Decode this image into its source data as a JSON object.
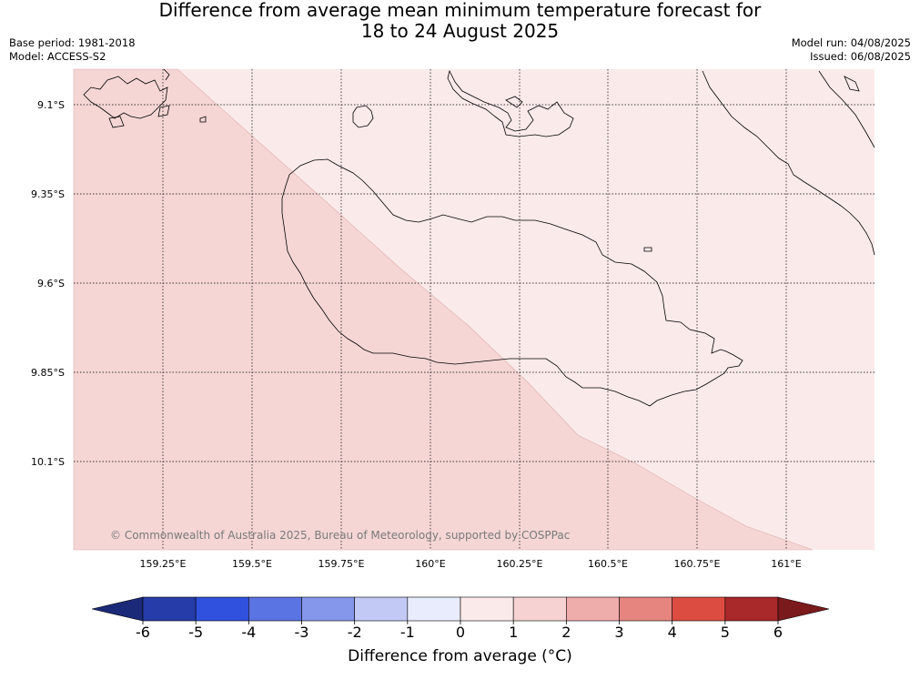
{
  "title_line1": "Difference from average mean minimum temperature forecast for",
  "title_line2": "18 to 24 August 2025",
  "base_period": "Base period: 1981-2018",
  "model": "Model: ACCESS-S2",
  "model_run": "Model run: 04/08/2025",
  "issued": "Issued: 06/08/2025",
  "copyright": "© Commonwealth of Australia 2025, Bureau of Meteorology, supported by COSPPac",
  "lat_labels": [
    "9.1°S",
    "9.35°S",
    "9.6°S",
    "9.85°S",
    "10.1°S"
  ],
  "lon_labels": [
    "159.25°E",
    "159.5°E",
    "159.75°E",
    "160°E",
    "160.25°E",
    "160.5°E",
    "160.75°E",
    "161°E"
  ],
  "colorbar": {
    "label": "Difference from average (°C)",
    "ticks": [
      "-6",
      "-5",
      "-4",
      "-3",
      "-2",
      "-1",
      "0",
      "1",
      "2",
      "3",
      "4",
      "5",
      "6"
    ],
    "colors": [
      "#263ca8",
      "#3051dd",
      "#5b74e3",
      "#8497ea",
      "#c2c9f5",
      "#e9ecfc",
      "#fbeaea",
      "#f6d3d2",
      "#eeadab",
      "#e6857f",
      "#dc4c41",
      "#a9282a"
    ],
    "under_color": "#1b2a78",
    "over_color": "#7a1a1c"
  },
  "map_colors": {
    "band_0_1": "#fbeaea",
    "band_1_2": "#f5d6d5",
    "coast": "#000000",
    "grid": "#000000"
  }
}
